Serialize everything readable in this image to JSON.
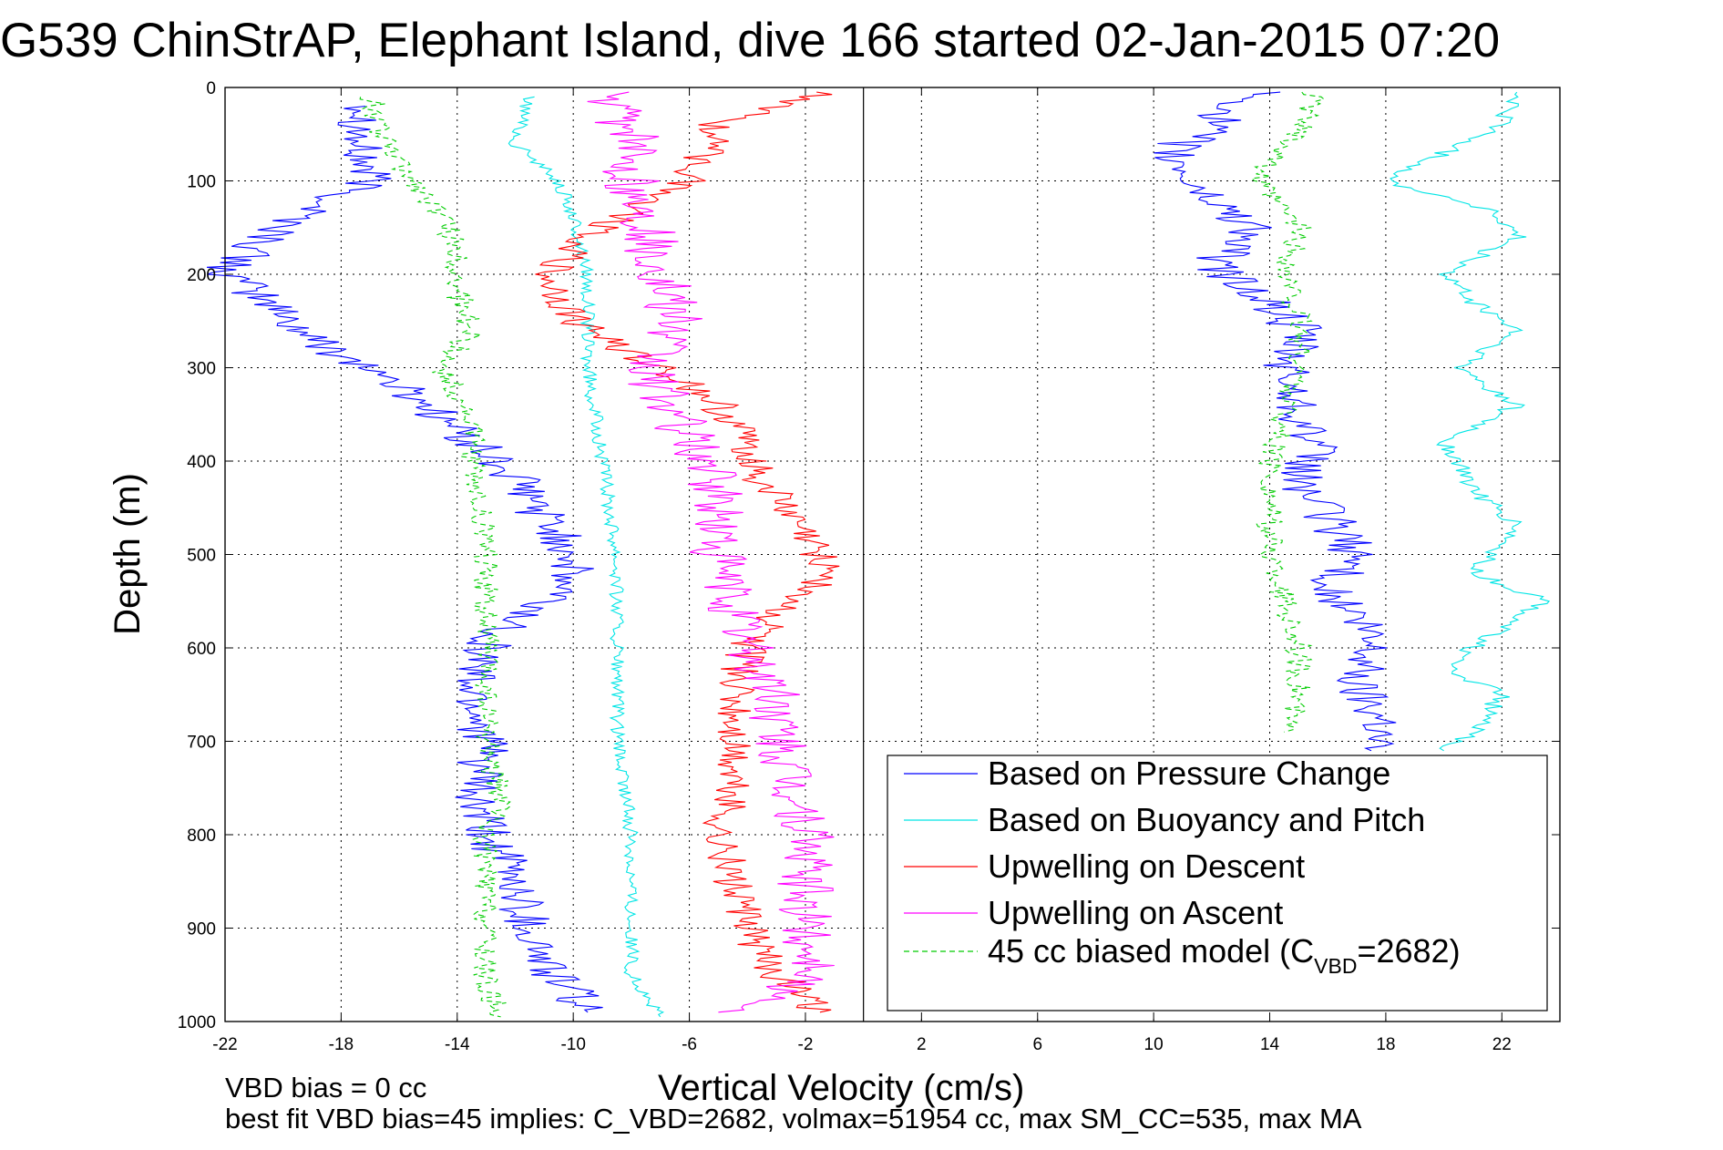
{
  "chart_data": {
    "type": "line",
    "title": "G539 ChinStrAP, Elephant Island, dive 166 started 02-Jan-2015 07:20",
    "xlabel": "Vertical Velocity (cm/s)",
    "ylabel": "Depth (m)",
    "xlim": [
      -22,
      24
    ],
    "ylim": [
      0,
      1000
    ],
    "y_reversed": true,
    "grid": true,
    "xticks": [
      -22,
      -18,
      -14,
      -10,
      -6,
      -2,
      2,
      6,
      10,
      14,
      18,
      22
    ],
    "yticks": [
      0,
      100,
      200,
      300,
      400,
      500,
      600,
      700,
      800,
      900,
      1000
    ],
    "zero_line_x": 0,
    "legend_position": "bottom-right",
    "series": [
      {
        "name": "Based on Pressure Change",
        "color": "#0000ff",
        "style": "solid",
        "noise": 0.9,
        "points": [
          [
            -17,
            20
          ],
          [
            -17.5,
            60
          ],
          [
            -17,
            100
          ],
          [
            -19.5,
            140
          ],
          [
            -21,
            170
          ],
          [
            -22,
            200
          ],
          [
            -20.5,
            230
          ],
          [
            -19,
            270
          ],
          [
            -17,
            300
          ],
          [
            -15,
            340
          ],
          [
            -13.5,
            380
          ],
          [
            -12,
            420
          ],
          [
            -11,
            460
          ],
          [
            -10,
            500
          ],
          [
            -10.5,
            540
          ],
          [
            -12,
            570
          ],
          [
            -13,
            600
          ],
          [
            -13.5,
            640
          ],
          [
            -13,
            700
          ],
          [
            -13.5,
            760
          ],
          [
            -13,
            800
          ],
          [
            -12,
            850
          ],
          [
            -11.5,
            900
          ],
          [
            -11,
            940
          ],
          [
            -10,
            970
          ],
          [
            -9.5,
            990
          ]
        ]
      },
      {
        "name": "Based on Pressure Change",
        "color": "#0000ff",
        "style": "solid",
        "noise": 0.9,
        "points": [
          [
            13.5,
            5
          ],
          [
            12,
            40
          ],
          [
            10.5,
            70
          ],
          [
            11.5,
            110
          ],
          [
            13.5,
            150
          ],
          [
            12,
            190
          ],
          [
            13.5,
            220
          ],
          [
            15,
            260
          ],
          [
            14.5,
            300
          ],
          [
            15,
            340
          ],
          [
            15.5,
            380
          ],
          [
            15,
            420
          ],
          [
            16,
            460
          ],
          [
            17,
            500
          ],
          [
            16,
            540
          ],
          [
            17,
            570
          ],
          [
            17.5,
            600
          ],
          [
            17,
            640
          ],
          [
            18,
            680
          ],
          [
            17.5,
            710
          ]
        ]
      },
      {
        "name": "Based on Buoyancy and Pitch",
        "color": "#00e5e5",
        "style": "solid",
        "noise": 0.25,
        "points": [
          [
            -11.5,
            10
          ],
          [
            -12,
            60
          ],
          [
            -10.5,
            100
          ],
          [
            -10,
            140
          ],
          [
            -9.5,
            200
          ],
          [
            -9.5,
            300
          ],
          [
            -9,
            400
          ],
          [
            -8.5,
            500
          ],
          [
            -8.5,
            600
          ],
          [
            -8.5,
            700
          ],
          [
            -8,
            800
          ],
          [
            -8,
            900
          ],
          [
            -8,
            950
          ],
          [
            -7,
            995
          ]
        ]
      },
      {
        "name": "Based on Buoyancy and Pitch",
        "color": "#00e5e5",
        "style": "solid",
        "noise": 0.35,
        "points": [
          [
            22.5,
            5
          ],
          [
            22,
            40
          ],
          [
            20,
            70
          ],
          [
            18,
            100
          ],
          [
            21.5,
            130
          ],
          [
            22.5,
            160
          ],
          [
            20,
            200
          ],
          [
            21,
            230
          ],
          [
            22.5,
            260
          ],
          [
            20.5,
            300
          ],
          [
            22.5,
            340
          ],
          [
            20,
            380
          ],
          [
            21,
            430
          ],
          [
            22.5,
            470
          ],
          [
            21,
            520
          ],
          [
            23.5,
            550
          ],
          [
            21.5,
            590
          ],
          [
            20,
            620
          ],
          [
            22,
            650
          ],
          [
            21,
            690
          ],
          [
            20,
            710
          ]
        ]
      },
      {
        "name": "Upwelling on Descent",
        "color": "#ff0000",
        "style": "solid",
        "noise": 0.7,
        "points": [
          [
            -1.5,
            5
          ],
          [
            -5,
            40
          ],
          [
            -6,
            100
          ],
          [
            -9,
            150
          ],
          [
            -11,
            200
          ],
          [
            -10,
            250
          ],
          [
            -7,
            300
          ],
          [
            -5,
            340
          ],
          [
            -4,
            380
          ],
          [
            -3.5,
            420
          ],
          [
            -2.5,
            460
          ],
          [
            -1.5,
            500
          ],
          [
            -1,
            520
          ],
          [
            -3,
            560
          ],
          [
            -4,
            600
          ],
          [
            -4.5,
            650
          ],
          [
            -4.5,
            700
          ],
          [
            -4.5,
            760
          ],
          [
            -5,
            800
          ],
          [
            -4.5,
            850
          ],
          [
            -4,
            900
          ],
          [
            -3,
            950
          ],
          [
            -1.5,
            990
          ]
        ]
      },
      {
        "name": "Upwelling on Ascent",
        "color": "#ff00ff",
        "style": "solid",
        "noise": 1.0,
        "points": [
          [
            -9,
            5
          ],
          [
            -8,
            50
          ],
          [
            -8,
            100
          ],
          [
            -7.5,
            150
          ],
          [
            -7,
            200
          ],
          [
            -6.5,
            250
          ],
          [
            -7.5,
            300
          ],
          [
            -6.5,
            350
          ],
          [
            -5.5,
            400
          ],
          [
            -5,
            450
          ],
          [
            -5,
            500
          ],
          [
            -4.5,
            550
          ],
          [
            -4,
            600
          ],
          [
            -3,
            650
          ],
          [
            -3,
            700
          ],
          [
            -2.5,
            750
          ],
          [
            -2,
            800
          ],
          [
            -2,
            850
          ],
          [
            -2,
            900
          ],
          [
            -1.5,
            950
          ],
          [
            -5,
            990
          ]
        ]
      },
      {
        "name": "45 cc biased model (C_VBD=2682)",
        "color": "#00cc00",
        "style": "dashed",
        "noise": 0.45,
        "points": [
          [
            -17,
            10
          ],
          [
            -16.5,
            60
          ],
          [
            -15.5,
            100
          ],
          [
            -14.5,
            140
          ],
          [
            -14,
            180
          ],
          [
            -14,
            220
          ],
          [
            -13.5,
            260
          ],
          [
            -14.5,
            300
          ],
          [
            -13.5,
            360
          ],
          [
            -13.5,
            420
          ],
          [
            -13,
            480
          ],
          [
            -13,
            520
          ],
          [
            -13,
            560
          ],
          [
            -13,
            600
          ],
          [
            -13,
            650
          ],
          [
            -13,
            700
          ],
          [
            -12.5,
            760
          ],
          [
            -13,
            800
          ],
          [
            -13,
            850
          ],
          [
            -13,
            900
          ],
          [
            -13,
            960
          ],
          [
            -12.5,
            995
          ]
        ]
      },
      {
        "name": "45 cc biased model (C_VBD=2682)",
        "color": "#00cc00",
        "style": "dashed",
        "noise": 0.45,
        "points": [
          [
            15.5,
            5
          ],
          [
            15,
            50
          ],
          [
            13.5,
            100
          ],
          [
            15,
            150
          ],
          [
            14.5,
            200
          ],
          [
            15,
            250
          ],
          [
            15,
            300
          ],
          [
            14.5,
            350
          ],
          [
            14,
            400
          ],
          [
            14,
            450
          ],
          [
            14,
            500
          ],
          [
            14.5,
            550
          ],
          [
            15,
            600
          ],
          [
            15,
            650
          ],
          [
            14.5,
            690
          ]
        ]
      }
    ],
    "legend": [
      {
        "label": "Based on Pressure Change",
        "color": "#0000ff",
        "style": "solid"
      },
      {
        "label": "Based on Buoyancy and Pitch",
        "color": "#00e5e5",
        "style": "solid"
      },
      {
        "label": "Upwelling on Descent",
        "color": "#ff0000",
        "style": "solid"
      },
      {
        "label": "Upwelling on Ascent",
        "color": "#ff00ff",
        "style": "solid"
      },
      {
        "label": "45 cc biased model (C",
        "sub": "VBD",
        "tail": "=2682)",
        "color": "#00cc00",
        "style": "dashed"
      }
    ],
    "annotations": [
      "VBD bias = 0 cc",
      "best fit VBD bias=45 implies: C_VBD=2682, volmax=51954 cc, max SM_CC=535, max MA"
    ]
  }
}
